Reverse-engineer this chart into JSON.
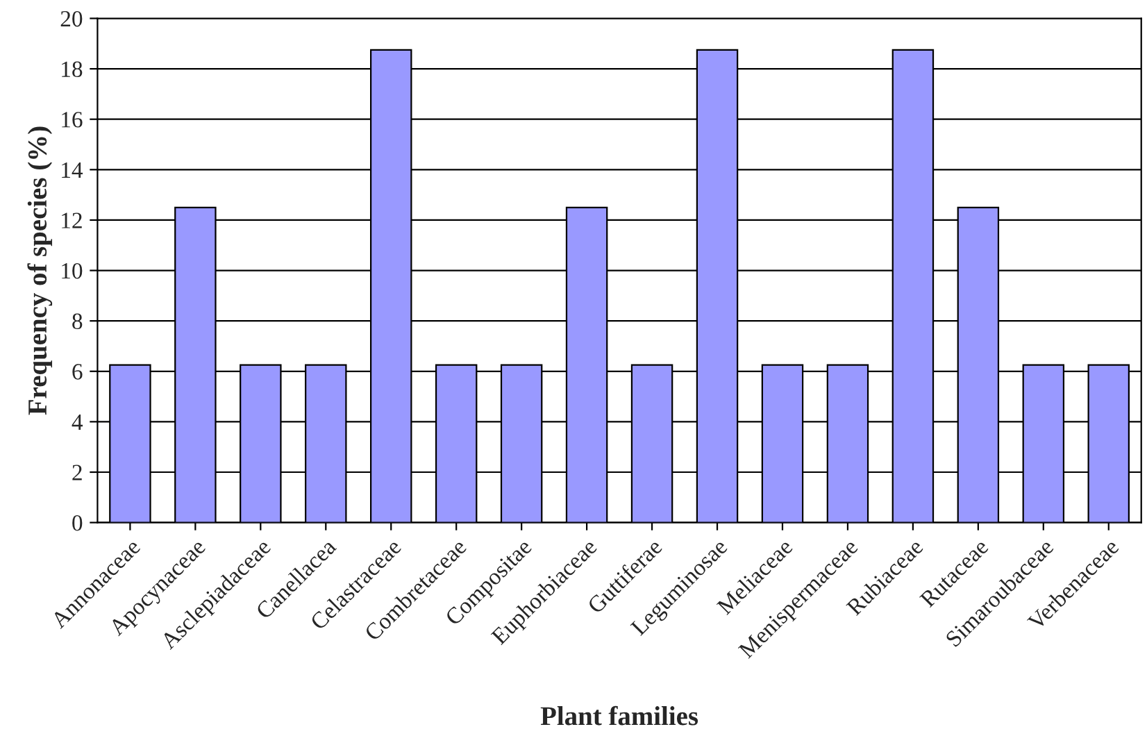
{
  "chart_data": {
    "type": "bar",
    "xlabel": "Plant families",
    "ylabel": "Frequency of species (%)",
    "categories": [
      "Annonaceae",
      "Apocynaceae",
      "Asclepiadaceae",
      "Canellacea",
      "Celastraceae",
      "Combretaceae",
      "Compositae",
      "Euphorbiaceae",
      "Guttiferae",
      "Leguminosae",
      "Meliaceae",
      "Menispermaceae",
      "Rubiaceae",
      "Rutaceae",
      "Simaroubaceae",
      "Verbenaceae"
    ],
    "values": [
      6.25,
      12.5,
      6.25,
      6.25,
      18.75,
      6.25,
      6.25,
      12.5,
      6.25,
      18.75,
      6.25,
      6.25,
      18.75,
      12.5,
      6.25,
      6.25
    ],
    "color": "#9999ff",
    "ylim": [
      0,
      20
    ],
    "yticks": [
      0,
      2,
      4,
      6,
      8,
      10,
      12,
      14,
      16,
      18,
      20
    ],
    "grid": "y",
    "legend": false
  }
}
